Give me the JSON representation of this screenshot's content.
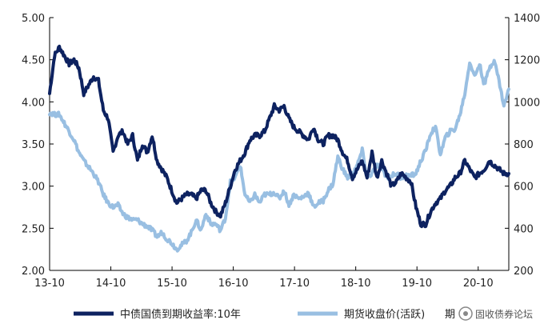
{
  "chart_data": {
    "type": "line",
    "title": "",
    "y_left": {
      "min": 2.0,
      "max": 5.0,
      "ticks": [
        "2.00",
        "2.50",
        "3.00",
        "3.50",
        "4.00",
        "4.50",
        "5.00"
      ]
    },
    "y_right": {
      "min": 200,
      "max": 1400,
      "ticks": [
        "200",
        "400",
        "600",
        "800",
        "1000",
        "1200",
        "1400"
      ]
    },
    "x_ticks": [
      "13-10",
      "14-10",
      "15-10",
      "16-10",
      "17-10",
      "18-10",
      "19-10",
      "20-10"
    ],
    "x_range": [
      0,
      94
    ],
    "grid": false,
    "legend_position": "bottom",
    "series": [
      {
        "name": "中债国债到期收益率:10年",
        "axis": "left",
        "color": "#0d2260",
        "x": [
          0,
          1,
          2,
          3,
          4,
          5,
          6,
          7,
          8,
          9,
          10,
          11,
          12,
          13,
          14,
          15,
          16,
          17,
          18,
          19,
          20,
          21,
          22,
          23,
          24,
          25,
          26,
          27,
          28,
          29,
          30,
          31,
          32,
          33,
          34,
          35,
          36,
          37,
          38,
          39,
          40,
          41,
          42,
          43,
          44,
          45,
          46,
          47,
          48,
          49,
          50,
          51,
          52,
          53,
          54,
          55,
          56,
          57,
          58,
          59,
          60,
          61,
          62,
          63,
          64,
          65,
          66,
          67,
          68,
          69,
          70,
          71,
          72,
          73,
          74,
          75,
          76,
          77,
          78,
          79,
          80,
          81,
          82,
          83,
          84,
          85,
          86,
          87,
          88,
          89,
          90,
          91,
          92,
          93,
          94
        ],
        "values": [
          4.1,
          4.55,
          4.65,
          4.55,
          4.45,
          4.5,
          4.4,
          4.1,
          4.2,
          4.3,
          4.25,
          3.9,
          3.8,
          3.4,
          3.6,
          3.65,
          3.5,
          3.6,
          3.3,
          3.5,
          3.4,
          3.6,
          3.3,
          3.2,
          3.1,
          2.95,
          2.8,
          2.85,
          2.9,
          2.9,
          2.85,
          2.95,
          2.95,
          2.8,
          2.7,
          2.65,
          2.8,
          3.0,
          3.2,
          3.3,
          3.4,
          3.55,
          3.6,
          3.6,
          3.65,
          3.8,
          3.95,
          3.9,
          3.95,
          3.8,
          3.7,
          3.65,
          3.6,
          3.55,
          3.7,
          3.55,
          3.5,
          3.6,
          3.6,
          3.55,
          3.4,
          3.3,
          3.1,
          3.2,
          3.3,
          3.1,
          3.4,
          3.1,
          3.3,
          3.15,
          3.0,
          3.05,
          3.15,
          3.1,
          3.05,
          2.75,
          2.55,
          2.55,
          2.7,
          2.8,
          2.85,
          2.95,
          3.0,
          3.1,
          3.15,
          3.3,
          3.2,
          3.1,
          3.15,
          3.2,
          3.3,
          3.25,
          3.2,
          3.15,
          3.15
        ]
      },
      {
        "name": "期货收盘价(活跃)",
        "axis": "right",
        "color": "#99bfe2",
        "x": [
          0,
          1,
          2,
          3,
          4,
          5,
          6,
          7,
          8,
          9,
          10,
          11,
          12,
          13,
          14,
          15,
          16,
          17,
          18,
          19,
          20,
          21,
          22,
          23,
          24,
          25,
          26,
          27,
          28,
          29,
          30,
          31,
          32,
          33,
          34,
          35,
          36,
          37,
          38,
          39,
          40,
          41,
          42,
          43,
          44,
          45,
          46,
          47,
          48,
          49,
          50,
          51,
          52,
          53,
          54,
          55,
          56,
          57,
          58,
          59,
          60,
          61,
          62,
          63,
          64,
          65,
          66,
          67,
          68,
          69,
          70,
          71,
          72,
          73,
          74,
          75,
          76,
          77,
          78,
          79,
          80,
          81,
          82,
          83,
          84,
          85,
          86,
          87,
          88,
          89,
          90,
          91,
          92,
          93,
          94
        ],
        "values": [
          950,
          940,
          940,
          900,
          860,
          820,
          760,
          720,
          690,
          660,
          620,
          560,
          520,
          500,
          510,
          470,
          450,
          440,
          440,
          420,
          410,
          390,
          360,
          380,
          350,
          330,
          300,
          320,
          340,
          380,
          440,
          390,
          470,
          420,
          420,
          390,
          450,
          620,
          640,
          700,
          560,
          520,
          560,
          520,
          560,
          560,
          570,
          540,
          580,
          510,
          560,
          540,
          550,
          570,
          500,
          520,
          530,
          580,
          610,
          740,
          680,
          640,
          660,
          700,
          770,
          640,
          660,
          700,
          690,
          640,
          650,
          660,
          640,
          650,
          650,
          660,
          720,
          770,
          850,
          880,
          750,
          830,
          860,
          870,
          940,
          1040,
          1190,
          1120,
          1180,
          1080,
          1160,
          1200,
          1100,
          980,
          1060
        ]
      }
    ]
  },
  "legend": {
    "items": [
      {
        "label": "中债国债到期收益率:10年",
        "color": "#0d2260"
      },
      {
        "label": "期货收盘价(活跃)",
        "color": "#99bfe2"
      }
    ]
  },
  "watermark": {
    "text": "固收债券论坛",
    "suffix": "期"
  }
}
